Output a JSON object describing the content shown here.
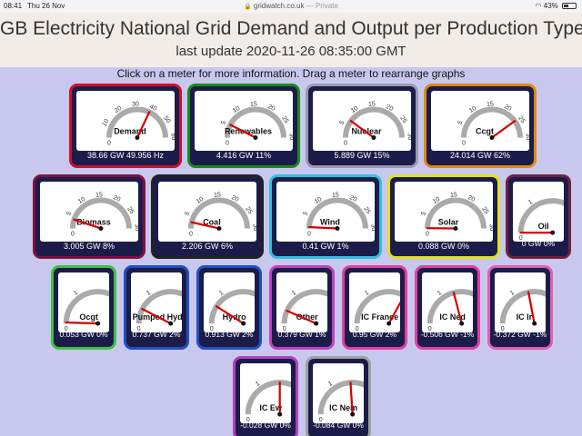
{
  "status_bar": {
    "time": "08:41",
    "date": "Thu 26 Nov",
    "url": "gridwatch.co.uk",
    "private_label": "— Private",
    "battery": "43%"
  },
  "header": {
    "title": "GB Electricity National Grid Demand and Output per Production Type",
    "last_update": "last update 2020-11-26 08:35:00 GMT"
  },
  "instructions": "Click on a meter for more information. Drag a meter to rearrange graphs",
  "meters": [
    {
      "id": "demand",
      "label": "Demand",
      "readout": "38.66 GW 49.956 Hz",
      "border": "#cc1030",
      "size": "large",
      "ticks": [
        "10",
        "20",
        "30",
        "40",
        "50",
        "60"
      ],
      "needle_fraction": 0.64,
      "needle_color": "#d40000"
    },
    {
      "id": "renewables",
      "label": "Renewables",
      "readout": "4.416 GW 11%",
      "border": "#1a8a1a",
      "size": "large",
      "ticks": [
        "5",
        "10",
        "15",
        "20",
        "25",
        "30"
      ],
      "needle_fraction": 0.15,
      "needle_color": "#d40000"
    },
    {
      "id": "nuclear",
      "label": "Nuclear",
      "readout": "5.889 GW 15%",
      "border": "#9a9ab0",
      "size": "large",
      "ticks": [
        "5",
        "10",
        "15",
        "20",
        "25",
        "30"
      ],
      "needle_fraction": 0.2,
      "needle_color": "#d40000"
    },
    {
      "id": "ccgt",
      "label": "Ccgt",
      "readout": "24.014 GW 62%",
      "border": "#e08a10",
      "size": "large",
      "ticks": [
        "5",
        "10",
        "15",
        "20",
        "25",
        "30"
      ],
      "needle_fraction": 0.8,
      "needle_color": "#d40000"
    },
    {
      "id": "biomass",
      "label": "Biomass",
      "readout": "3.005 GW 8%",
      "border": "#801040",
      "size": "large",
      "ticks": [
        "5",
        "10",
        "15",
        "20",
        "25",
        "30"
      ],
      "needle_fraction": 0.1,
      "needle_color": "#d40000"
    },
    {
      "id": "coal",
      "label": "Coal",
      "readout": "2.206 GW 6%",
      "border": "#222",
      "size": "large",
      "ticks": [
        "5",
        "10",
        "15",
        "20",
        "25",
        "30"
      ],
      "needle_fraction": 0.07,
      "needle_color": "#d40000"
    },
    {
      "id": "wind",
      "label": "Wind",
      "readout": "0.41 GW 1%",
      "border": "#30c0e0",
      "size": "large",
      "ticks": [
        "5",
        "10",
        "15",
        "20",
        "25",
        "30"
      ],
      "needle_fraction": 0.015,
      "needle_color": "#d40000"
    },
    {
      "id": "solar",
      "label": "Solar",
      "readout": "0.088 GW 0%",
      "border": "#e0e020",
      "size": "large",
      "ticks": [
        "5",
        "10",
        "15",
        "20",
        "25",
        "30"
      ],
      "needle_fraction": 0.003,
      "needle_color": "#d40000"
    },
    {
      "id": "oil",
      "label": "Oil",
      "readout": "0 GW 0%",
      "border": "#702040",
      "size": "small",
      "ticks": [
        "1",
        "2",
        "3"
      ],
      "needle_fraction": 0.0,
      "needle_color": "#d40000"
    },
    {
      "id": "ocgt",
      "label": "Ocgt",
      "readout": "0.053 GW 0%",
      "border": "#40c040",
      "size": "small",
      "ticks": [
        "1",
        "3",
        "5"
      ],
      "needle_fraction": 0.01,
      "needle_color": "#d40000"
    },
    {
      "id": "pumped-hydro",
      "label": "Pumped Hydro",
      "readout": "0.737 GW 2%",
      "border": "#2050c0",
      "size": "small",
      "ticks": [
        "1",
        "3",
        "5"
      ],
      "needle_fraction": 0.15,
      "needle_color": "#d40000"
    },
    {
      "id": "hydro",
      "label": "Hydro",
      "readout": "0.913 GW 2%",
      "border": "#2050c0",
      "size": "small",
      "ticks": [
        "1",
        "3",
        "5"
      ],
      "needle_fraction": 0.18,
      "needle_color": "#d40000"
    },
    {
      "id": "other",
      "label": "Other",
      "readout": "0.379 GW 1%",
      "border": "#c040c0",
      "size": "small",
      "ticks": [
        "1",
        "2",
        "3"
      ],
      "needle_fraction": 0.13,
      "needle_color": "#d40000"
    },
    {
      "id": "ic-france",
      "label": "IC France",
      "readout": "0.95 GW 2%",
      "border": "#e040a0",
      "size": "small",
      "ticks": [
        "1",
        "2",
        "3"
      ],
      "needle_fraction": 0.66,
      "needle_color": "#d40000"
    },
    {
      "id": "ic-ned",
      "label": "IC Ned",
      "readout": "-0.506 GW -1%",
      "border": "#e040a0",
      "size": "small",
      "ticks": [
        "1",
        "2",
        "3"
      ],
      "needle_fraction": 0.42,
      "needle_color": "#d40000"
    },
    {
      "id": "ic-irl",
      "label": "IC Irl",
      "readout": "-0.372 GW -1%",
      "border": "#e060b0",
      "size": "small",
      "ticks": [
        "1",
        "2",
        "3"
      ],
      "needle_fraction": 0.44,
      "needle_color": "#d40000"
    },
    {
      "id": "ic-ew",
      "label": "IC Ew",
      "readout": "-0.028 GW 0%",
      "border": "#b040c0",
      "size": "small",
      "ticks": [
        "1",
        "2",
        "3"
      ],
      "needle_fraction": 0.5,
      "needle_color": "#d40000"
    },
    {
      "id": "ic-nem",
      "label": "IC Nem",
      "readout": "-0.084 GW 0%",
      "border": "#a0a0a0",
      "size": "small",
      "ticks": [
        "1",
        "2",
        "3"
      ],
      "needle_fraction": 0.48,
      "needle_color": "#d40000"
    }
  ]
}
